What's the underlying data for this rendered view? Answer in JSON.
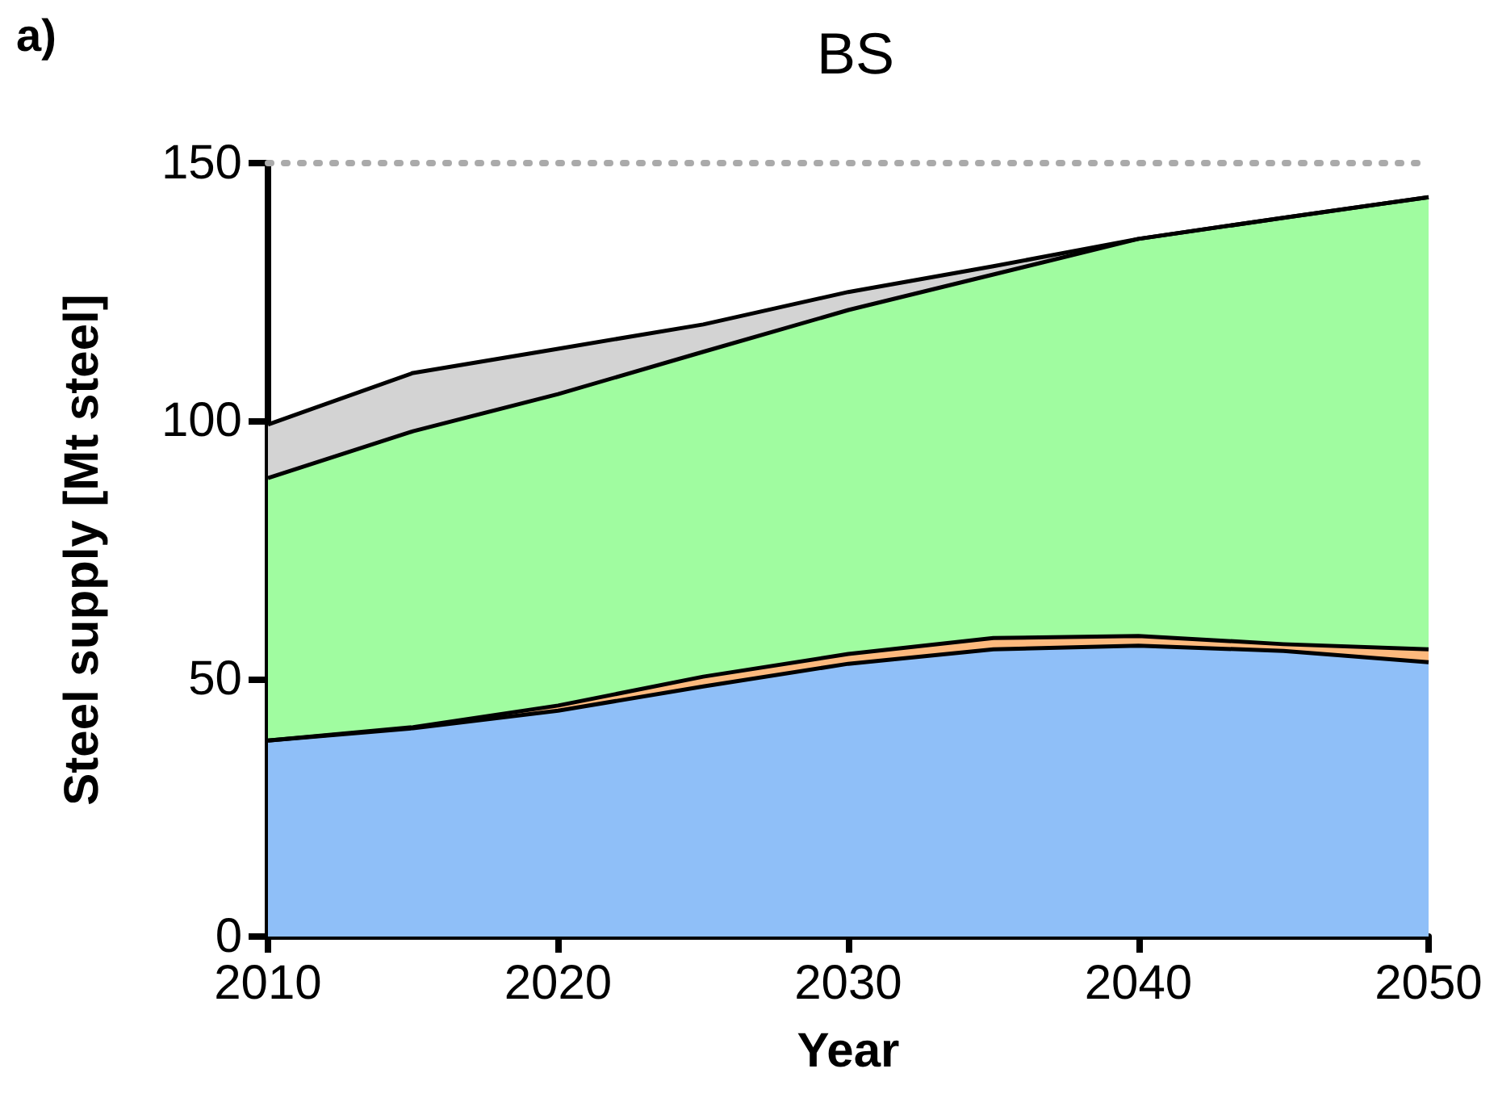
{
  "chart_data": {
    "type": "area",
    "title": "BS",
    "annotations": [
      "a)"
    ],
    "xlabel": "Year",
    "ylabel": "Steel supply [Mt steel]",
    "stacked": true,
    "x": [
      2010,
      2015,
      2020,
      2025,
      2030,
      2035,
      2040,
      2045,
      2050
    ],
    "series": [
      {
        "color": "#8fbff8",
        "values": [
          38,
          40.4,
          43.8,
          48.5,
          52.9,
          55.7,
          56.4,
          55.4,
          53.2
        ]
      },
      {
        "color": "#fdb97d",
        "values": [
          0,
          0.2,
          1,
          1.9,
          1.9,
          2.2,
          1.9,
          1.3,
          2.5
        ]
      },
      {
        "color": "#a0fca0",
        "values": [
          50.9,
          57.4,
          60.4,
          63,
          66.7,
          70.5,
          77,
          82.7,
          87.7
        ]
      },
      {
        "color": "#d3d3d3",
        "values": [
          10.4,
          11.3,
          8.8,
          5.3,
          3.5,
          1.6,
          0,
          0,
          0
        ]
      }
    ],
    "xlim": [
      2010,
      2050
    ],
    "xticks": [
      2010,
      2020,
      2030,
      2040,
      2050
    ],
    "ylim": [
      0,
      150
    ],
    "yticks": [
      0,
      50,
      100,
      150
    ],
    "grid": false,
    "ref_lines": [
      {
        "axis": "y",
        "value": 150,
        "color": "#aaaaaa",
        "line_style": "dotted"
      }
    ]
  }
}
